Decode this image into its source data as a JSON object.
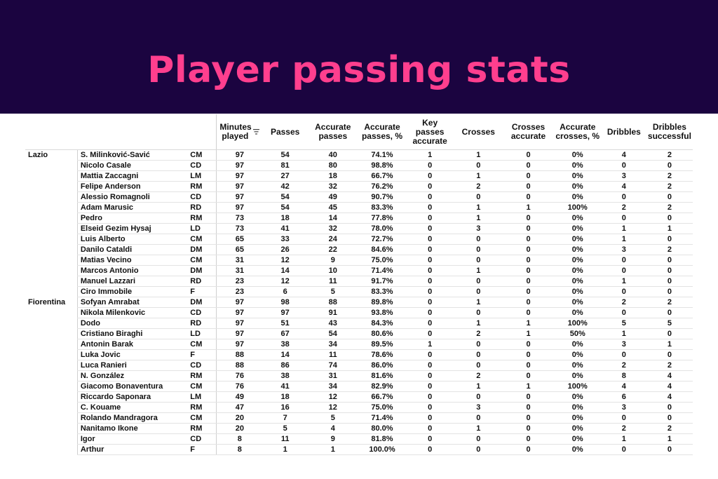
{
  "title": "Player passing stats",
  "columns": [
    {
      "key": "min",
      "label": "Minutes played"
    },
    {
      "key": "pas",
      "label": "Passes"
    },
    {
      "key": "acc",
      "label": "Accurate passes"
    },
    {
      "key": "accp",
      "label": "Accurate passes, %"
    },
    {
      "key": "key",
      "label": "Key passes accurate"
    },
    {
      "key": "cro",
      "label": "Crosses"
    },
    {
      "key": "croa",
      "label": "Crosses accurate"
    },
    {
      "key": "crop",
      "label": "Accurate crosses, %"
    },
    {
      "key": "dri",
      "label": "Dribbles"
    },
    {
      "key": "dris",
      "label": "Dribbles successful"
    }
  ],
  "sort_icon": "sort-descending-icon",
  "rows": [
    {
      "team": "Lazio",
      "player": "S. Milinković-Savić",
      "pos": "CM",
      "min": "97",
      "pas": "54",
      "acc": "40",
      "accp": "74.1%",
      "key": "1",
      "cro": "1",
      "croa": "0",
      "crop": "0%",
      "dri": "4",
      "dris": "2"
    },
    {
      "team": "",
      "player": "Nicolo Casale",
      "pos": "CD",
      "min": "97",
      "pas": "81",
      "acc": "80",
      "accp": "98.8%",
      "key": "0",
      "cro": "0",
      "croa": "0",
      "crop": "0%",
      "dri": "0",
      "dris": "0"
    },
    {
      "team": "",
      "player": "Mattia Zaccagni",
      "pos": "LM",
      "min": "97",
      "pas": "27",
      "acc": "18",
      "accp": "66.7%",
      "key": "0",
      "cro": "1",
      "croa": "0",
      "crop": "0%",
      "dri": "3",
      "dris": "2"
    },
    {
      "team": "",
      "player": "Felipe Anderson",
      "pos": "RM",
      "min": "97",
      "pas": "42",
      "acc": "32",
      "accp": "76.2%",
      "key": "0",
      "cro": "2",
      "croa": "0",
      "crop": "0%",
      "dri": "4",
      "dris": "2"
    },
    {
      "team": "",
      "player": "Alessio Romagnoli",
      "pos": "CD",
      "min": "97",
      "pas": "54",
      "acc": "49",
      "accp": "90.7%",
      "key": "0",
      "cro": "0",
      "croa": "0",
      "crop": "0%",
      "dri": "0",
      "dris": "0"
    },
    {
      "team": "",
      "player": "Adam Marusic",
      "pos": "RD",
      "min": "97",
      "pas": "54",
      "acc": "45",
      "accp": "83.3%",
      "key": "0",
      "cro": "1",
      "croa": "1",
      "crop": "100%",
      "dri": "2",
      "dris": "2"
    },
    {
      "team": "",
      "player": "Pedro",
      "pos": "RM",
      "min": "73",
      "pas": "18",
      "acc": "14",
      "accp": "77.8%",
      "key": "0",
      "cro": "1",
      "croa": "0",
      "crop": "0%",
      "dri": "0",
      "dris": "0"
    },
    {
      "team": "",
      "player": "Elseid Gezim Hysaj",
      "pos": "LD",
      "min": "73",
      "pas": "41",
      "acc": "32",
      "accp": "78.0%",
      "key": "0",
      "cro": "3",
      "croa": "0",
      "crop": "0%",
      "dri": "1",
      "dris": "1"
    },
    {
      "team": "",
      "player": "Luis Alberto",
      "pos": "CM",
      "min": "65",
      "pas": "33",
      "acc": "24",
      "accp": "72.7%",
      "key": "0",
      "cro": "0",
      "croa": "0",
      "crop": "0%",
      "dri": "1",
      "dris": "0"
    },
    {
      "team": "",
      "player": "Danilo Cataldi",
      "pos": "DM",
      "min": "65",
      "pas": "26",
      "acc": "22",
      "accp": "84.6%",
      "key": "0",
      "cro": "0",
      "croa": "0",
      "crop": "0%",
      "dri": "3",
      "dris": "2"
    },
    {
      "team": "",
      "player": "Matias Vecino",
      "pos": "CM",
      "min": "31",
      "pas": "12",
      "acc": "9",
      "accp": "75.0%",
      "key": "0",
      "cro": "0",
      "croa": "0",
      "crop": "0%",
      "dri": "0",
      "dris": "0"
    },
    {
      "team": "",
      "player": "Marcos Antonio",
      "pos": "DM",
      "min": "31",
      "pas": "14",
      "acc": "10",
      "accp": "71.4%",
      "key": "0",
      "cro": "1",
      "croa": "0",
      "crop": "0%",
      "dri": "0",
      "dris": "0"
    },
    {
      "team": "",
      "player": "Manuel Lazzari",
      "pos": "RD",
      "min": "23",
      "pas": "12",
      "acc": "11",
      "accp": "91.7%",
      "key": "0",
      "cro": "0",
      "croa": "0",
      "crop": "0%",
      "dri": "1",
      "dris": "0"
    },
    {
      "team": "",
      "player": "Ciro Immobile",
      "pos": "F",
      "min": "23",
      "pas": "6",
      "acc": "5",
      "accp": "83.3%",
      "key": "0",
      "cro": "0",
      "croa": "0",
      "crop": "0%",
      "dri": "0",
      "dris": "0"
    },
    {
      "team": "Fiorentina",
      "player": "Sofyan Amrabat",
      "pos": "DM",
      "min": "97",
      "pas": "98",
      "acc": "88",
      "accp": "89.8%",
      "key": "0",
      "cro": "1",
      "croa": "0",
      "crop": "0%",
      "dri": "2",
      "dris": "2"
    },
    {
      "team": "",
      "player": "Nikola Milenkovic",
      "pos": "CD",
      "min": "97",
      "pas": "97",
      "acc": "91",
      "accp": "93.8%",
      "key": "0",
      "cro": "0",
      "croa": "0",
      "crop": "0%",
      "dri": "0",
      "dris": "0"
    },
    {
      "team": "",
      "player": "Dodo",
      "pos": "RD",
      "min": "97",
      "pas": "51",
      "acc": "43",
      "accp": "84.3%",
      "key": "0",
      "cro": "1",
      "croa": "1",
      "crop": "100%",
      "dri": "5",
      "dris": "5"
    },
    {
      "team": "",
      "player": "Cristiano Biraghi",
      "pos": "LD",
      "min": "97",
      "pas": "67",
      "acc": "54",
      "accp": "80.6%",
      "key": "0",
      "cro": "2",
      "croa": "1",
      "crop": "50%",
      "dri": "1",
      "dris": "0"
    },
    {
      "team": "",
      "player": "Antonin Barak",
      "pos": "CM",
      "min": "97",
      "pas": "38",
      "acc": "34",
      "accp": "89.5%",
      "key": "1",
      "cro": "0",
      "croa": "0",
      "crop": "0%",
      "dri": "3",
      "dris": "1"
    },
    {
      "team": "",
      "player": "Luka Jovic",
      "pos": "F",
      "min": "88",
      "pas": "14",
      "acc": "11",
      "accp": "78.6%",
      "key": "0",
      "cro": "0",
      "croa": "0",
      "crop": "0%",
      "dri": "0",
      "dris": "0"
    },
    {
      "team": "",
      "player": "Luca Ranieri",
      "pos": "CD",
      "min": "88",
      "pas": "86",
      "acc": "74",
      "accp": "86.0%",
      "key": "0",
      "cro": "0",
      "croa": "0",
      "crop": "0%",
      "dri": "2",
      "dris": "2"
    },
    {
      "team": "",
      "player": "N. González",
      "pos": "RM",
      "min": "76",
      "pas": "38",
      "acc": "31",
      "accp": "81.6%",
      "key": "0",
      "cro": "2",
      "croa": "0",
      "crop": "0%",
      "dri": "8",
      "dris": "4"
    },
    {
      "team": "",
      "player": "Giacomo Bonaventura",
      "pos": "CM",
      "min": "76",
      "pas": "41",
      "acc": "34",
      "accp": "82.9%",
      "key": "0",
      "cro": "1",
      "croa": "1",
      "crop": "100%",
      "dri": "4",
      "dris": "4"
    },
    {
      "team": "",
      "player": "Riccardo Saponara",
      "pos": "LM",
      "min": "49",
      "pas": "18",
      "acc": "12",
      "accp": "66.7%",
      "key": "0",
      "cro": "0",
      "croa": "0",
      "crop": "0%",
      "dri": "6",
      "dris": "4"
    },
    {
      "team": "",
      "player": "C. Kouame",
      "pos": "RM",
      "min": "47",
      "pas": "16",
      "acc": "12",
      "accp": "75.0%",
      "key": "0",
      "cro": "3",
      "croa": "0",
      "crop": "0%",
      "dri": "3",
      "dris": "0"
    },
    {
      "team": "",
      "player": "Rolando Mandragora",
      "pos": "CM",
      "min": "20",
      "pas": "7",
      "acc": "5",
      "accp": "71.4%",
      "key": "0",
      "cro": "0",
      "croa": "0",
      "crop": "0%",
      "dri": "0",
      "dris": "0"
    },
    {
      "team": "",
      "player": "Nanitamo Ikone",
      "pos": "RM",
      "min": "20",
      "pas": "5",
      "acc": "4",
      "accp": "80.0%",
      "key": "0",
      "cro": "1",
      "croa": "0",
      "crop": "0%",
      "dri": "2",
      "dris": "2"
    },
    {
      "team": "",
      "player": "Igor",
      "pos": "CD",
      "min": "8",
      "pas": "11",
      "acc": "9",
      "accp": "81.8%",
      "key": "0",
      "cro": "0",
      "croa": "0",
      "crop": "0%",
      "dri": "1",
      "dris": "1"
    },
    {
      "team": "",
      "player": "Arthur",
      "pos": "F",
      "min": "8",
      "pas": "1",
      "acc": "1",
      "accp": "100.0%",
      "key": "0",
      "cro": "0",
      "croa": "0",
      "crop": "0%",
      "dri": "0",
      "dris": "0"
    }
  ]
}
